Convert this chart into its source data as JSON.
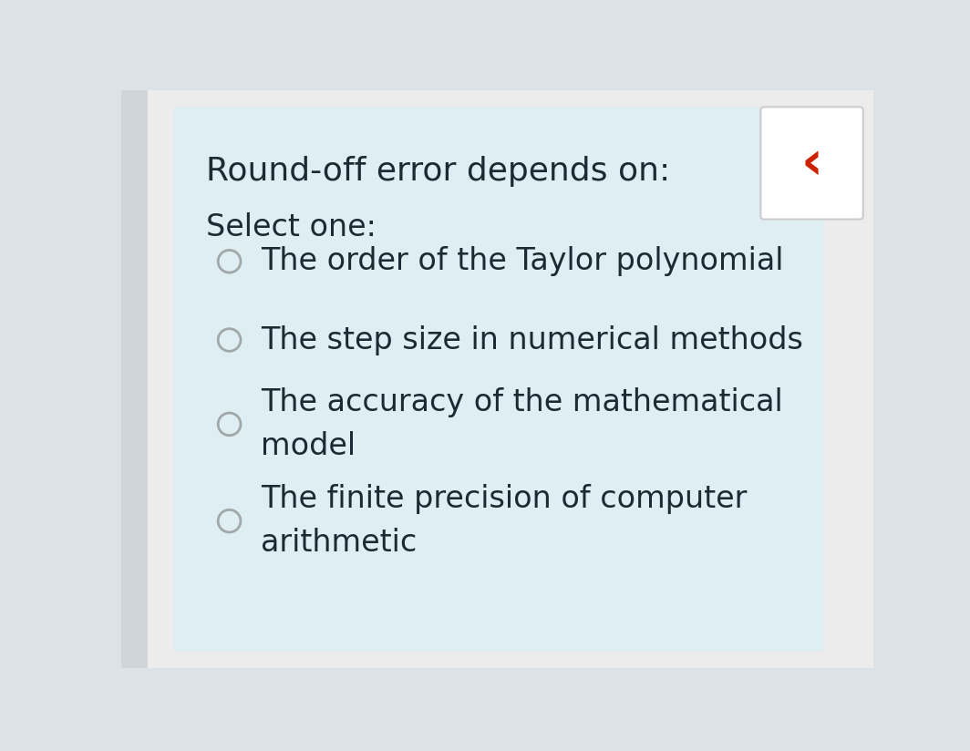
{
  "title": "Round-off error depends on:",
  "subtitle": "Select one:",
  "options": [
    "The order of the Taylor polynomial",
    "The step size in numerical methods",
    "The accuracy of the mathematical\nmodel",
    "The finite precision of computer\narithmetic"
  ],
  "bg_outer_left": "#dde2e6",
  "bg_outer_right": "#f0f0f0",
  "bg_card": "#deeef2",
  "text_color": "#1c2b33",
  "circle_edge_color": "#a0a8aa",
  "circle_fill_color": "#deeef2",
  "title_fontsize": 26,
  "subtitle_fontsize": 24,
  "option_fontsize": 24,
  "nav_bg": "#ffffff",
  "nav_arrow_color": "#cc2200",
  "nav_arrow": "‹"
}
